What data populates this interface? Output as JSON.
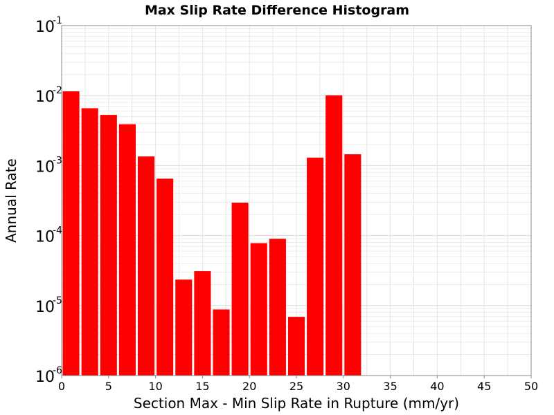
{
  "chart_data": {
    "type": "bar",
    "title": "Max Slip Rate Difference Histogram",
    "xlabel": "Section Max - Min Slip Rate in Rupture (mm/yr)",
    "ylabel": "Annual Rate",
    "xlim": [
      0,
      50
    ],
    "ylim": [
      1e-06,
      0.1
    ],
    "yscale": "log",
    "grid": true,
    "bar_color": "#ff0000",
    "bin_width": 2,
    "x_ticks": [
      "0",
      "5",
      "10",
      "15",
      "20",
      "25",
      "30",
      "35",
      "40",
      "45",
      "50"
    ],
    "y_ticks": [
      {
        "base": "10",
        "exp": "-1"
      },
      {
        "base": "10",
        "exp": "-2"
      },
      {
        "base": "10",
        "exp": "-3"
      },
      {
        "base": "10",
        "exp": "-4"
      },
      {
        "base": "10",
        "exp": "-5"
      },
      {
        "base": "10",
        "exp": "-6"
      }
    ],
    "bars": [
      {
        "x": 1,
        "value": 0.0115
      },
      {
        "x": 3,
        "value": 0.0066
      },
      {
        "x": 5,
        "value": 0.0053
      },
      {
        "x": 7,
        "value": 0.0039
      },
      {
        "x": 9,
        "value": 0.00135
      },
      {
        "x": 11,
        "value": 0.00065
      },
      {
        "x": 13,
        "value": 2.35e-05
      },
      {
        "x": 15,
        "value": 3.1e-05
      },
      {
        "x": 17,
        "value": 8.8e-06
      },
      {
        "x": 19,
        "value": 0.000295
      },
      {
        "x": 21,
        "value": 7.8e-05
      },
      {
        "x": 23,
        "value": 9e-05
      },
      {
        "x": 25,
        "value": 6.9e-06
      },
      {
        "x": 27,
        "value": 0.0013
      },
      {
        "x": 29,
        "value": 0.0101
      },
      {
        "x": 31,
        "value": 0.00145
      }
    ]
  }
}
